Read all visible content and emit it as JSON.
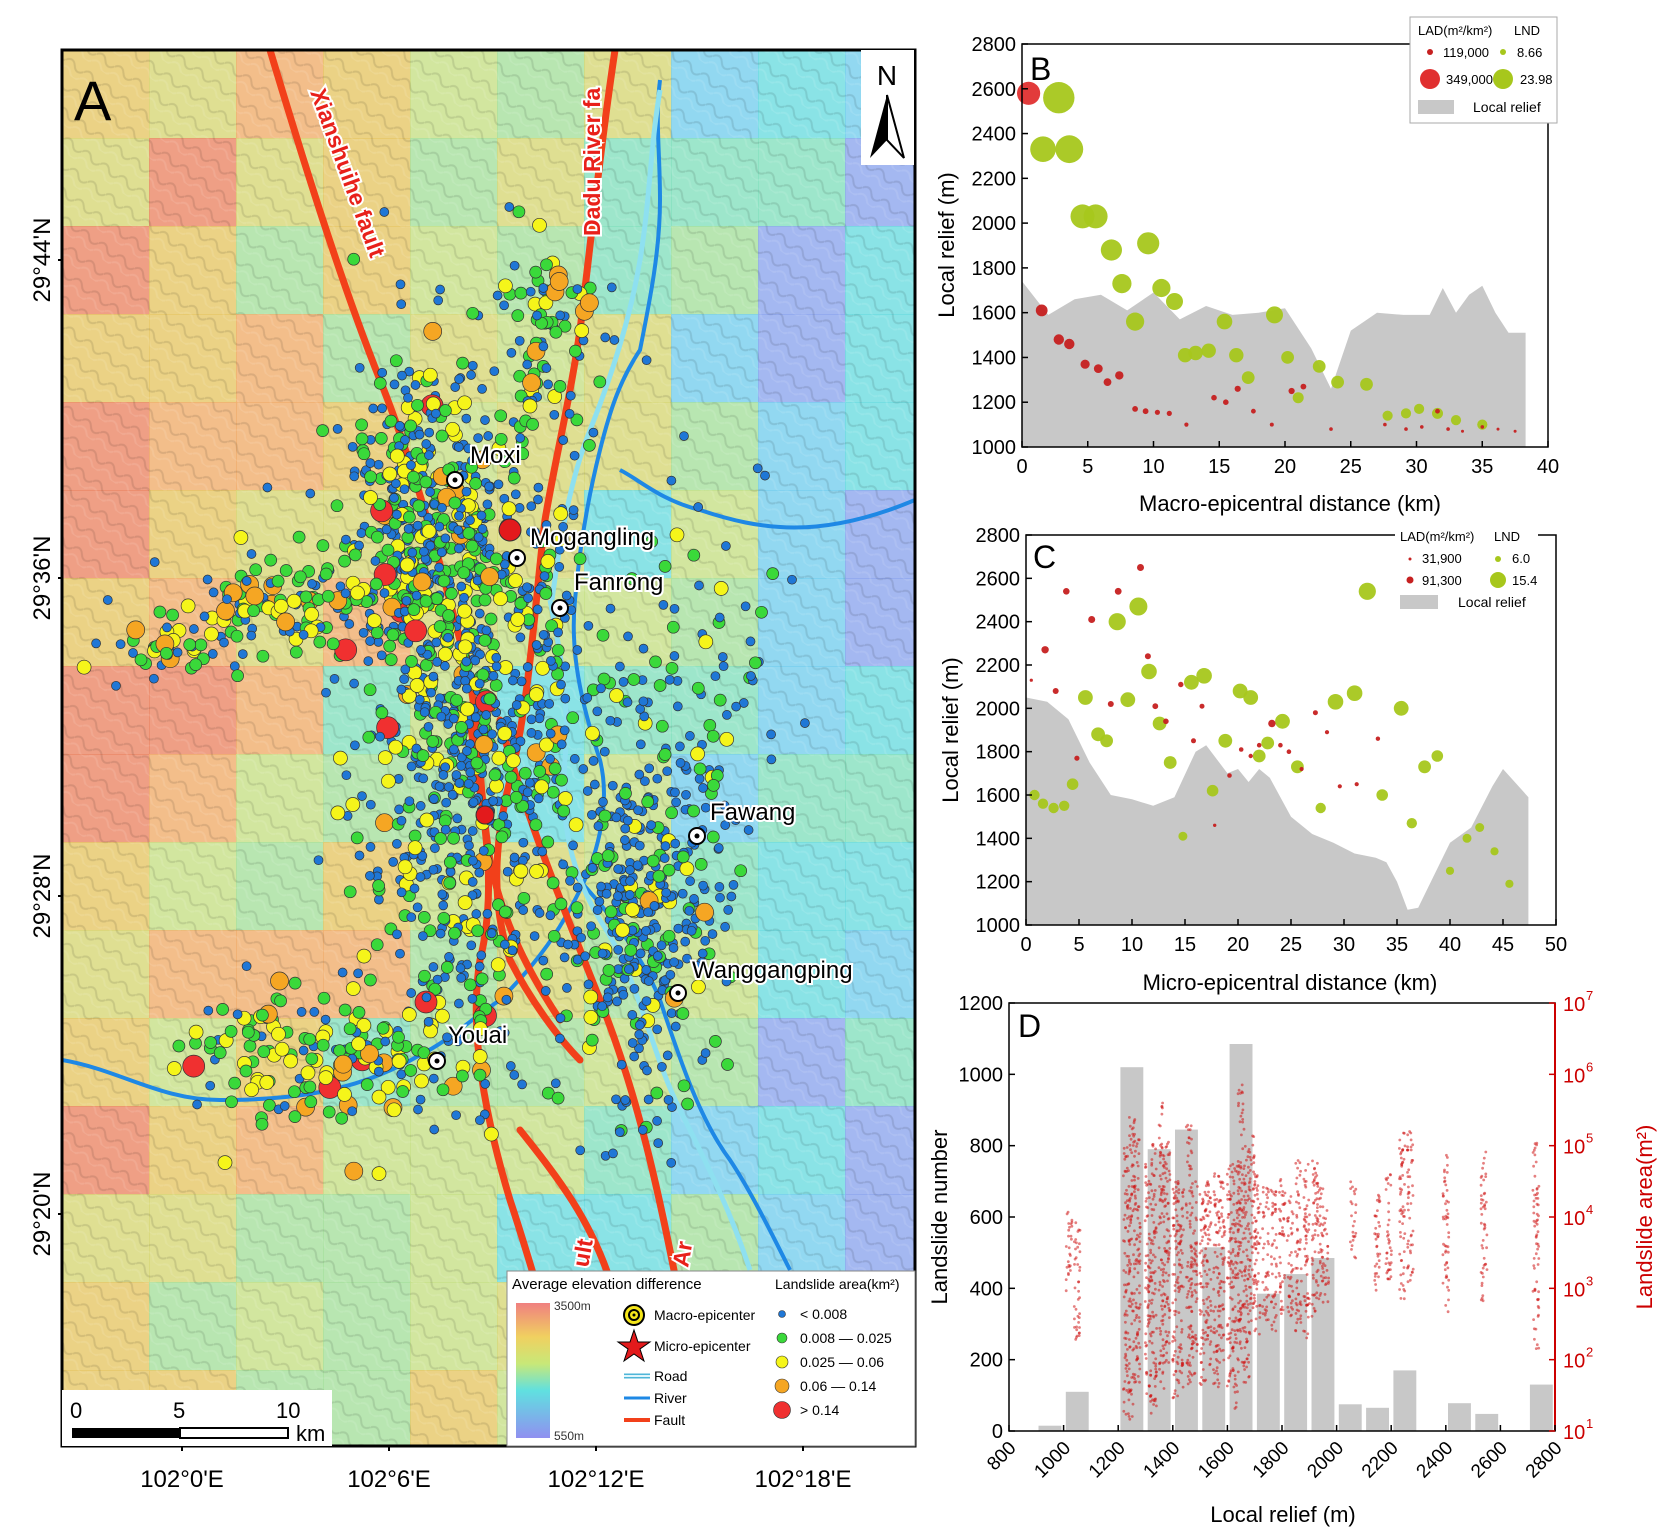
{
  "panel_letters": [
    "A",
    "B",
    "C",
    "D"
  ],
  "map": {
    "north_label": "N",
    "lat_labels": [
      "29°44'N",
      "29°36'N",
      "29°28'N",
      "29°20'N"
    ],
    "lon_labels": [
      "102°0'E",
      "102°6'E",
      "102°12'E",
      "102°18'E"
    ],
    "fault_labels": [
      "Xianshuihe fault",
      "Dadu River fa",
      "ult",
      "Ar"
    ],
    "places": [
      "Moxi",
      "Mogangling",
      "Fanrong",
      "Fawang",
      "Wanggangping",
      "Youai"
    ],
    "scale": {
      "ticks": [
        "0",
        "5",
        "10"
      ],
      "unit": "km"
    },
    "legend": {
      "elev_title": "Average elevation difference",
      "elev_max": "3500m",
      "elev_min": "550m",
      "macro": "Macro-epicenter",
      "micro": "Micro-epicenter",
      "road": "Road",
      "river": "River",
      "fault": "Fault",
      "area_title": "Landslide area(km²)",
      "area_classes": [
        "< 0.008",
        "0.008 — 0.025",
        "0.025 — 0.06",
        "0.06 — 0.14",
        "> 0.14"
      ],
      "area_colors": [
        "#1f77d6",
        "#3ad93a",
        "#f5f51a",
        "#f5a623",
        "#f03030"
      ]
    }
  },
  "colors": {
    "lad": "#c62020",
    "lnd": "#a7c71c",
    "relief": "#c8c8c8",
    "area_axis": "#cc0000"
  },
  "chart_data": [
    {
      "type": "scatter",
      "panel": "B",
      "xlabel": "Macro-epicentral distance (km)",
      "ylabel": "Local relief (m)",
      "xlim": [
        0,
        40
      ],
      "ylim": [
        1000,
        2800
      ],
      "xticks": [
        "0",
        "5",
        "10",
        "15",
        "20",
        "25",
        "30",
        "35",
        "40"
      ],
      "yticks": [
        "1000",
        "1200",
        "1400",
        "1600",
        "1800",
        "2000",
        "2200",
        "2400",
        "2600",
        "2800"
      ],
      "legend": {
        "lad_title": "LAD(m²/km²)",
        "lnd_title": "LND",
        "lad_values": [
          "119,000",
          "349,000"
        ],
        "lnd_values": [
          "8.66",
          "23.98"
        ],
        "relief": "Local relief"
      },
      "relief_area": {
        "x": [
          0,
          2,
          4,
          6,
          8,
          10,
          12,
          14,
          16,
          18,
          20,
          22,
          23.5,
          25,
          27,
          29,
          31,
          32,
          33,
          34,
          35,
          36,
          37,
          38.3
        ],
        "y": [
          1740,
          1590,
          1660,
          1680,
          1610,
          1690,
          1570,
          1630,
          1590,
          1600,
          1620,
          1440,
          1260,
          1520,
          1600,
          1590,
          1590,
          1710,
          1600,
          1680,
          1720,
          1600,
          1510,
          1510
        ]
      },
      "lad_points": {
        "x": [
          0.5,
          1.5,
          2.8,
          3.6,
          4.8,
          5.8,
          6.5,
          7.4,
          8.6,
          9.4,
          10.3,
          11.2,
          12.5,
          14.6,
          15.5,
          16.4,
          17.6,
          19.0,
          20.5,
          21.4,
          23.5,
          27.6,
          29.2,
          30.4,
          31.6,
          32.4,
          33.5,
          35.0,
          36.2,
          37.5
        ],
        "y": [
          2580,
          1610,
          1480,
          1460,
          1370,
          1350,
          1290,
          1320,
          1170,
          1160,
          1155,
          1150,
          1100,
          1220,
          1200,
          1260,
          1160,
          1100,
          1250,
          1270,
          1080,
          1100,
          1080,
          1090,
          1160,
          1080,
          1070,
          1090,
          1080,
          1070
        ],
        "v": [
          349,
          90,
          70,
          70,
          55,
          50,
          40,
          45,
          22,
          22,
          18,
          18,
          12,
          20,
          20,
          25,
          15,
          10,
          25,
          22,
          8,
          8,
          8,
          8,
          15,
          8,
          6,
          8,
          6,
          6
        ]
      },
      "lnd_points": {
        "x": [
          1.6,
          2.8,
          3.6,
          4.6,
          5.6,
          6.8,
          7.6,
          8.6,
          9.6,
          10.6,
          11.6,
          12.4,
          13.2,
          14.2,
          15.4,
          16.3,
          17.2,
          19.2,
          20.2,
          21.0,
          22.6,
          24.0,
          26.2,
          27.8,
          29.2,
          30.2,
          31.6,
          33.0,
          35.0
        ],
        "y": [
          2330,
          2560,
          2330,
          2030,
          2030,
          1880,
          1730,
          1560,
          1910,
          1710,
          1650,
          1410,
          1420,
          1430,
          1560,
          1410,
          1310,
          1590,
          1400,
          1220,
          1360,
          1290,
          1280,
          1140,
          1150,
          1170,
          1150,
          1120,
          1100
        ],
        "v": [
          16,
          24,
          19,
          14,
          14,
          11,
          9,
          8,
          12,
          8,
          7,
          5,
          5,
          5,
          6,
          5,
          4,
          7,
          4,
          3,
          4,
          4,
          4,
          2.5,
          2.5,
          2.5,
          3,
          2.5,
          2.5
        ]
      }
    },
    {
      "type": "scatter",
      "panel": "C",
      "xlabel": "Micro-epicentral distance (km)",
      "ylabel": "Local relief (m)",
      "xlim": [
        0,
        50
      ],
      "ylim": [
        1000,
        2800
      ],
      "xticks": [
        "0",
        "5",
        "10",
        "15",
        "20",
        "25",
        "30",
        "35",
        "40",
        "45",
        "50"
      ],
      "yticks": [
        "1000",
        "1200",
        "1400",
        "1600",
        "1800",
        "2000",
        "2200",
        "2400",
        "2600",
        "2800"
      ],
      "legend": {
        "lad_title": "LAD(m²/km²)",
        "lnd_title": "LND",
        "lad_values": [
          "31,900",
          "91,300"
        ],
        "lnd_values": [
          "6.0",
          "15.4"
        ],
        "relief": "Local relief"
      },
      "relief_area": {
        "x": [
          0,
          2,
          4,
          6,
          8,
          10,
          12,
          14,
          16,
          17,
          19,
          20,
          21,
          22,
          23,
          25,
          27,
          29,
          31,
          33,
          34,
          35,
          36,
          37,
          38,
          40,
          42,
          44,
          45,
          47.4
        ],
        "y": [
          2050,
          2030,
          1950,
          1750,
          1600,
          1580,
          1550,
          1590,
          1800,
          1830,
          1700,
          1720,
          1660,
          1720,
          1680,
          1500,
          1420,
          1380,
          1330,
          1310,
          1290,
          1200,
          1070,
          1080,
          1180,
          1380,
          1450,
          1640,
          1720,
          1590
        ]
      },
      "lad_points": {
        "x": [
          0.5,
          1.8,
          2.8,
          3.8,
          4.8,
          6.2,
          8.0,
          8.7,
          10.8,
          11.5,
          12.2,
          13.2,
          14.6,
          15.8,
          16.6,
          17.8,
          19.2,
          20.3,
          21.2,
          22.0,
          23.2,
          24.0,
          24.8,
          26.0,
          27.3,
          28.4,
          29.6,
          31.2,
          33.2
        ],
        "y": [
          2130,
          2270,
          2080,
          2540,
          1770,
          2410,
          2020,
          2540,
          2650,
          2240,
          2010,
          1940,
          2110,
          1850,
          2010,
          1460,
          1690,
          1810,
          1780,
          1830,
          1930,
          1830,
          1800,
          1720,
          1980,
          1890,
          1640,
          1650,
          1860
        ],
        "v": [
          8,
          45,
          30,
          35,
          22,
          40,
          30,
          38,
          40,
          30,
          28,
          25,
          24,
          20,
          20,
          10,
          18,
          18,
          16,
          18,
          45,
          18,
          18,
          15,
          20,
          14,
          14,
          14,
          16
        ],
        "note_first_y": 1410
      },
      "lnd_points": {
        "x": [
          0.8,
          1.6,
          2.6,
          3.6,
          4.4,
          5.6,
          6.8,
          7.6,
          8.6,
          9.6,
          10.6,
          11.6,
          12.6,
          13.6,
          14.8,
          15.6,
          16.8,
          17.6,
          18.8,
          20.2,
          21.2,
          22.0,
          22.8,
          24.2,
          25.6,
          27.8,
          29.2,
          31.0,
          32.2,
          33.6,
          35.4,
          36.4,
          37.6,
          38.8,
          40.0,
          41.6,
          42.8,
          44.2,
          45.6
        ],
        "y": [
          1600,
          1560,
          1540,
          1550,
          1650,
          2050,
          1880,
          1850,
          2400,
          2040,
          2470,
          2170,
          1930,
          1750,
          1410,
          2120,
          2150,
          1620,
          1850,
          2080,
          2050,
          1780,
          1840,
          1940,
          1730,
          1540,
          2030,
          2070,
          2540,
          1600,
          2000,
          1470,
          1730,
          1780,
          1250,
          1400,
          1450,
          1340,
          1190
        ],
        "v": [
          4,
          4,
          4,
          4,
          5,
          8,
          7,
          6,
          11,
          8,
          12,
          9,
          7,
          6,
          3,
          8,
          9,
          5,
          7,
          8,
          8,
          6,
          6,
          8,
          6,
          4,
          9,
          9,
          11,
          5,
          8,
          4,
          6,
          5,
          2.5,
          3,
          3,
          2.5,
          2.5
        ]
      }
    },
    {
      "type": "bar",
      "panel": "D",
      "xlabel": "Local relief (m)",
      "ylabel": "Landslide number",
      "y2label": "Landslide area(m²)",
      "xlim": [
        800,
        2800
      ],
      "ylim": [
        0,
        1200
      ],
      "y2lim_log10": [
        1,
        7
      ],
      "xticks": [
        "800",
        "1000",
        "1200",
        "1400",
        "1600",
        "1800",
        "2000",
        "2200",
        "2400",
        "2600",
        "2800"
      ],
      "yticks": [
        "0",
        "200",
        "400",
        "600",
        "800",
        "1000",
        "1200"
      ],
      "y2ticks": [
        "10",
        "10",
        "10",
        "10",
        "10",
        "10",
        "10"
      ],
      "y2exps": [
        "1",
        "2",
        "3",
        "4",
        "5",
        "6",
        "7"
      ],
      "bars": {
        "x": [
          950,
          1050,
          1250,
          1350,
          1450,
          1550,
          1650,
          1750,
          1850,
          1950,
          2050,
          2150,
          2250,
          2450,
          2550,
          2750
        ],
        "values": [
          15,
          110,
          1020,
          790,
          845,
          515,
          1085,
          385,
          440,
          485,
          75,
          65,
          170,
          78,
          48,
          130
        ]
      },
      "area_columns": {
        "x": [
          1020,
          1050,
          1230,
          1250,
          1270,
          1310,
          1330,
          1360,
          1380,
          1410,
          1430,
          1460,
          1480,
          1510,
          1530,
          1560,
          1580,
          1610,
          1630,
          1650,
          1670,
          1690,
          1710,
          1740,
          1770,
          1800,
          1830,
          1860,
          1890,
          1920,
          1940,
          1960,
          2060,
          2150,
          2190,
          2240,
          2270,
          2400,
          2540,
          2730
        ],
        "log_min": [
          2.9,
          2.2,
          1.2,
          1.1,
          1.6,
          1.2,
          1.3,
          1.4,
          1.8,
          1.4,
          1.5,
          1.6,
          1.8,
          1.5,
          1.9,
          1.6,
          1.9,
          1.6,
          1.2,
          1.8,
          1.6,
          2.2,
          2.3,
          2.5,
          2.4,
          2.6,
          2.5,
          2.4,
          2.2,
          2.6,
          2.7,
          2.8,
          3.4,
          2.8,
          3.1,
          2.8,
          3.0,
          2.6,
          2.8,
          2.1
        ],
        "log_max": [
          4.1,
          4.0,
          5.0,
          5.4,
          5.2,
          4.8,
          5.1,
          5.6,
          5.1,
          4.5,
          4.4,
          5.3,
          4.5,
          4.4,
          4.6,
          4.7,
          4.5,
          4.8,
          4.8,
          5.9,
          5.0,
          5.2,
          4.6,
          4.5,
          4.4,
          4.6,
          4.3,
          4.8,
          4.8,
          4.8,
          4.5,
          4.1,
          4.5,
          4.4,
          4.8,
          5.3,
          5.2,
          4.9,
          5.0,
          5.1
        ]
      }
    }
  ]
}
